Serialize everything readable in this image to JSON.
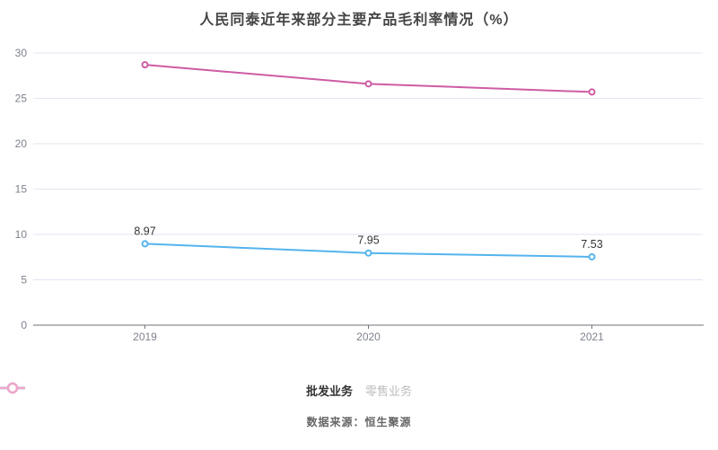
{
  "title": "人民同泰近年来部分主要产品毛利率情况（%）",
  "source_note": "数据来源：恒生聚源",
  "chart_data": {
    "type": "line",
    "categories": [
      "2019",
      "2020",
      "2021"
    ],
    "series": [
      {
        "name": "批发业务",
        "values": [
          8.97,
          7.95,
          7.53
        ],
        "labels": [
          "8.97",
          "7.95",
          "7.53"
        ],
        "color": "#54b4ee"
      },
      {
        "name": "零售业务",
        "values": [
          28.7,
          26.6,
          25.7
        ],
        "labels": [],
        "color": "#ce5ca4"
      }
    ],
    "ylim": [
      0,
      30
    ],
    "ytick_step": 5,
    "grid": true,
    "legend_position": "bottom",
    "xlabel": "",
    "ylabel": ""
  },
  "legend": {
    "items": [
      {
        "label": "批发业务",
        "icon": "line-circle-icon",
        "color": "#54b4ee",
        "text_color": "#333333",
        "bold": true
      },
      {
        "label": "零售业务",
        "icon": "line-circle-icon",
        "color": "#f0a5c8",
        "text_color": "#bcbcbc",
        "bold": false
      }
    ]
  },
  "colors": {
    "grid": "#e0e6f1",
    "axis": "#6e7079",
    "axis_label": "#7d828c",
    "data_label": "#333333",
    "marker_fill": "#ffffff",
    "background": "#ffffff"
  }
}
